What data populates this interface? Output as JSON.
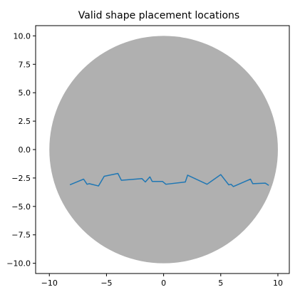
{
  "chart_data": {
    "type": "line",
    "title": "Valid shape placement locations",
    "xlabel": "",
    "ylabel": "",
    "xlim": [
      -11.2,
      11.0
    ],
    "ylim": [
      -10.9,
      10.9
    ],
    "x_ticks": [
      -10,
      -5,
      0,
      5,
      10
    ],
    "x_tick_labels": [
      "−10",
      "−5",
      "0",
      "5",
      "10"
    ],
    "y_ticks": [
      10.0,
      7.5,
      5.0,
      2.5,
      0.0,
      -2.5,
      -5.0,
      -7.5,
      -10.0
    ],
    "y_tick_labels": [
      "10.0",
      "7.5",
      "5.0",
      "2.5",
      "0.0",
      "−2.5",
      "−5.0",
      "−7.5",
      "−10.0"
    ],
    "grid": false,
    "region": {
      "shape": "circle",
      "center": [
        0,
        0
      ],
      "radius": 10,
      "color": "#b0b0b0"
    },
    "series": [
      {
        "color": "#1f77b4",
        "x": [
          -8.2,
          -7.0,
          -6.7,
          -6.5,
          -5.7,
          -5.2,
          -4.0,
          -3.7,
          -1.9,
          -1.6,
          -1.2,
          -1.0,
          -0.1,
          0.2,
          1.9,
          2.1,
          3.8,
          5.0,
          5.7,
          5.9,
          6.1,
          7.6,
          7.8,
          8.9,
          9.2
        ],
        "y": [
          -3.1,
          -2.6,
          -3.05,
          -3.0,
          -3.2,
          -2.35,
          -2.1,
          -2.7,
          -2.55,
          -2.85,
          -2.4,
          -2.8,
          -2.8,
          -3.05,
          -2.85,
          -2.25,
          -3.05,
          -2.2,
          -3.1,
          -3.05,
          -3.25,
          -2.6,
          -3.0,
          -2.95,
          -3.15
        ]
      }
    ]
  }
}
